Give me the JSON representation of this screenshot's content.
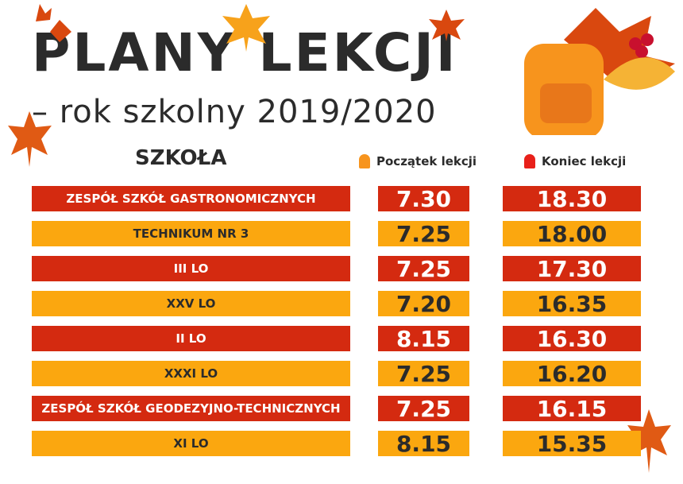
{
  "title": "PLANY LEKCJI",
  "subtitle": "– rok szkolny 2019/2020",
  "headers": {
    "school": "SZKOŁA",
    "start": "Początek lekcji",
    "end": "Koniec lekcji"
  },
  "colors": {
    "red": "#d42a10",
    "orange": "#fba70f",
    "start_bell": "#f7941d",
    "end_bell": "#e8201a"
  },
  "rows": [
    {
      "name": "ZESPÓŁ SZKÓŁ GASTRONOMICZNYCH",
      "start": "7.30",
      "end": "18.30",
      "color": "red"
    },
    {
      "name": "TECHNIKUM NR 3",
      "start": "7.25",
      "end": "18.00",
      "color": "orange"
    },
    {
      "name": "III LO",
      "start": "7.25",
      "end": "17.30",
      "color": "red"
    },
    {
      "name": "XXV LO",
      "start": "7.20",
      "end": "16.35",
      "color": "orange"
    },
    {
      "name": "II LO",
      "start": "8.15",
      "end": "16.30",
      "color": "red"
    },
    {
      "name": "XXXI LO",
      "start": "7.25",
      "end": "16.20",
      "color": "orange"
    },
    {
      "name": "ZESPÓŁ SZKÓŁ GEODEZYJNO-TECHNICZNYCH",
      "start": "7.25",
      "end": "16.15",
      "color": "red"
    },
    {
      "name": "XI LO",
      "start": "8.15",
      "end": "15.35",
      "color": "orange"
    }
  ]
}
